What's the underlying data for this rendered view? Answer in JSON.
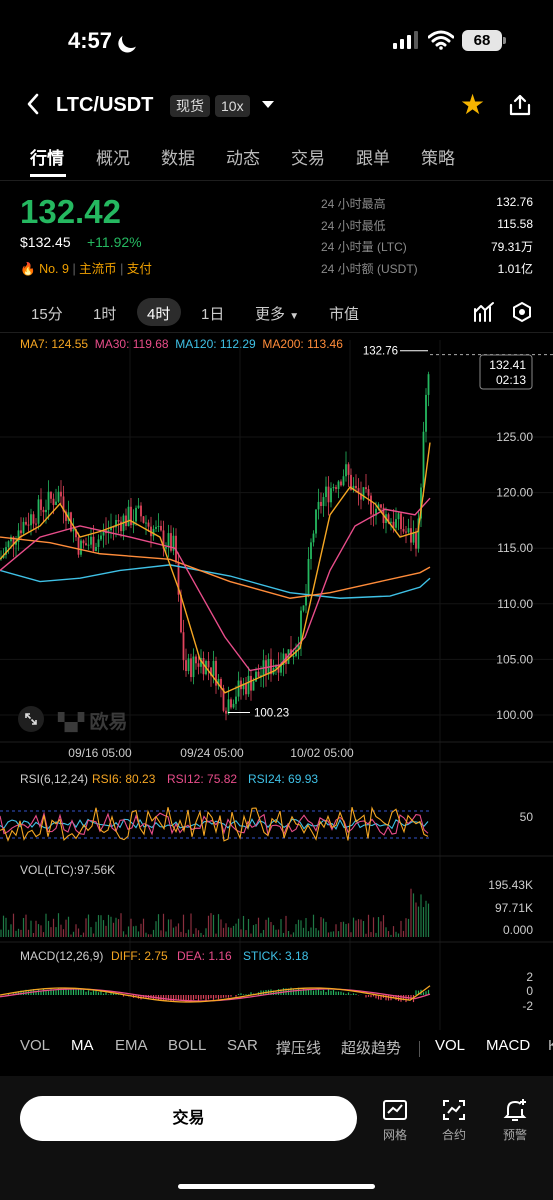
{
  "status": {
    "time": "4:57",
    "battery": "68"
  },
  "header": {
    "pair": "LTC/USDT",
    "spot_tag": "现货",
    "leverage_tag": "10x"
  },
  "tabs": [
    "行情",
    "概况",
    "数据",
    "动态",
    "交易",
    "跟单",
    "策略"
  ],
  "price": {
    "last": "132.42",
    "usd": "$132.45",
    "change": "+11.92%",
    "rank": "No. 9",
    "tag1": "主流币",
    "tag2": "支付"
  },
  "stats": [
    {
      "label": "24 小时最高",
      "value": "132.76"
    },
    {
      "label": "24 小时最低",
      "value": "115.58"
    },
    {
      "label": "24 小时量 (LTC)",
      "value": "79.31万"
    },
    {
      "label": "24 小时额 (USDT)",
      "value": "1.01亿"
    }
  ],
  "timeframes": [
    "15分",
    "1时",
    "4时",
    "1日",
    "更多",
    "市值"
  ],
  "selected_timeframe": "4时",
  "ma": [
    {
      "label": "MA7: 124.55",
      "color": "#f5a623"
    },
    {
      "label": "MA30: 119.68",
      "color": "#e84d8a"
    },
    {
      "label": "MA120: 112.29",
      "color": "#3fc1e6"
    },
    {
      "label": "MA200: 113.46",
      "color": "#ff8c3a"
    }
  ],
  "chart_data": {
    "type": "candlestick",
    "y_ticks": [
      "125.00",
      "120.00",
      "115.00",
      "110.00",
      "105.00",
      "100.00"
    ],
    "x_ticks": [
      "09/16 05:00",
      "09/24 05:00",
      "10/02 05:00"
    ],
    "high_marker": "132.76",
    "low_marker": "100.23",
    "last_price": "132.41",
    "countdown": "02:13",
    "watermark": "欧易",
    "rsi": {
      "title": "RSI(6,12,24)",
      "rsi6": "RSI6: 80.23",
      "rsi12": "RSI12: 75.82",
      "rsi24": "RSI24: 69.93",
      "level": "50"
    },
    "vol": {
      "title": "VOL(LTC):97.56K",
      "ticks": [
        "195.43K",
        "97.71K",
        "0.000"
      ]
    },
    "macd": {
      "title": "MACD(12,26,9)",
      "diff": "DIFF: 2.75",
      "dea": "DEA: 1.16",
      "stick": "STICK: 3.18",
      "ticks": [
        "2",
        "0",
        "-2"
      ]
    }
  },
  "indicators": [
    "VOL",
    "MA",
    "EMA",
    "BOLL",
    "SAR",
    "撑压线",
    "超级趋势",
    "VOL",
    "MACD",
    "K"
  ],
  "bottom": {
    "trade": "交易",
    "grid": "网格",
    "contract": "合约",
    "alert": "预警"
  }
}
